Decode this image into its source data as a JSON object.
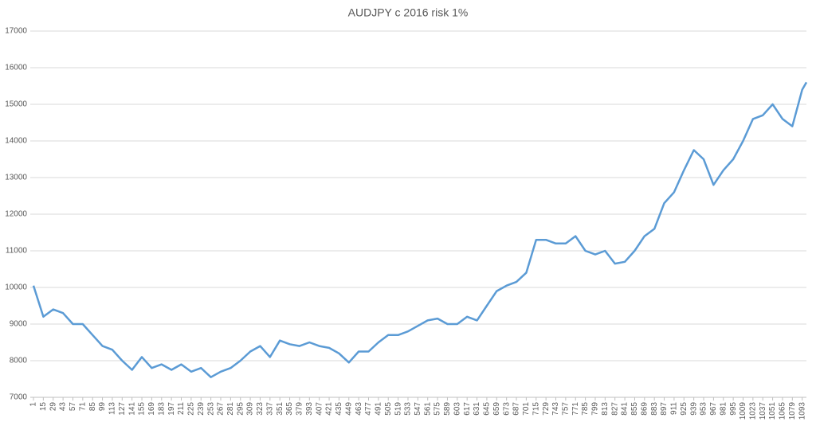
{
  "chart_data": {
    "type": "line",
    "title": "AUDJPY c 2016 risk 1%",
    "x": [
      1,
      15,
      29,
      43,
      57,
      71,
      85,
      99,
      113,
      127,
      141,
      155,
      169,
      183,
      197,
      211,
      225,
      239,
      253,
      267,
      281,
      295,
      309,
      323,
      337,
      351,
      365,
      379,
      393,
      407,
      421,
      435,
      449,
      463,
      477,
      491,
      505,
      519,
      533,
      547,
      561,
      575,
      589,
      603,
      617,
      631,
      645,
      659,
      673,
      687,
      701,
      715,
      729,
      743,
      757,
      771,
      785,
      799,
      813,
      827,
      841,
      855,
      869,
      883,
      897,
      911,
      925,
      939,
      953,
      967,
      981,
      995,
      1009,
      1023,
      1037,
      1051,
      1065,
      1079,
      1093,
      1099
    ],
    "series": [
      {
        "name": "AUDJPY",
        "color": "#5b9bd5",
        "values": [
          10050,
          9200,
          9400,
          9300,
          9000,
          9000,
          8700,
          8400,
          8300,
          8000,
          7750,
          8100,
          7800,
          7900,
          7750,
          7900,
          7700,
          7800,
          7550,
          7700,
          7800,
          8000,
          8250,
          8400,
          8100,
          8550,
          8450,
          8400,
          8500,
          8400,
          8350,
          8200,
          7950,
          8250,
          8250,
          8500,
          8700,
          8700,
          8800,
          8950,
          9100,
          9150,
          9000,
          9000,
          9200,
          9100,
          9500,
          9900,
          10050,
          10150,
          10400,
          11300,
          11300,
          11200,
          11200,
          11400,
          11000,
          10900,
          11000,
          10650,
          10700,
          11000,
          11400,
          11600,
          12300,
          12600,
          13200,
          13750,
          13500,
          12800,
          13200,
          13500,
          14000,
          14600,
          14700,
          15000,
          14600,
          14400,
          15400,
          15600
        ]
      }
    ],
    "xlim": [
      1,
      1099
    ],
    "xticks": [
      1,
      15,
      29,
      43,
      57,
      71,
      85,
      99,
      113,
      127,
      141,
      155,
      169,
      183,
      197,
      211,
      225,
      239,
      253,
      267,
      281,
      295,
      309,
      323,
      337,
      351,
      365,
      379,
      393,
      407,
      421,
      435,
      449,
      463,
      477,
      491,
      505,
      519,
      533,
      547,
      561,
      575,
      589,
      603,
      617,
      631,
      645,
      659,
      673,
      687,
      701,
      715,
      729,
      743,
      757,
      771,
      785,
      799,
      813,
      827,
      841,
      855,
      869,
      883,
      897,
      911,
      925,
      939,
      953,
      967,
      981,
      995,
      1009,
      1023,
      1037,
      1051,
      1065,
      1079,
      1093
    ],
    "ylim": [
      7000,
      17000
    ],
    "yticks": [
      7000,
      8000,
      9000,
      10000,
      11000,
      12000,
      13000,
      14000,
      15000,
      16000,
      17000
    ],
    "grid": true
  }
}
